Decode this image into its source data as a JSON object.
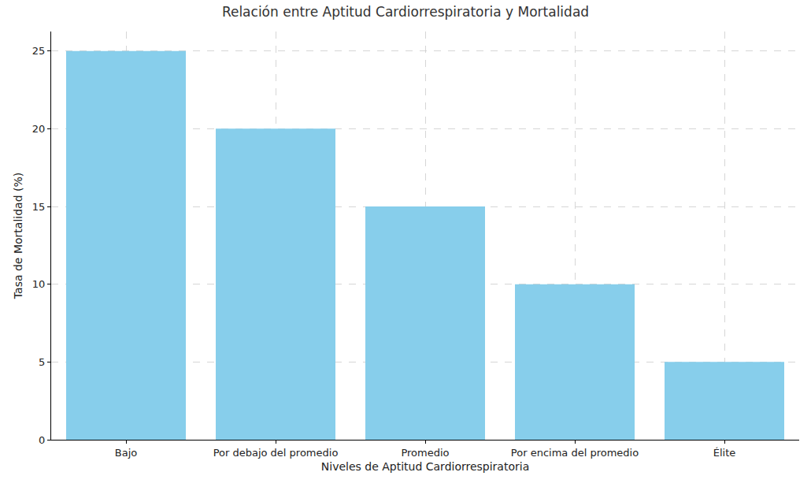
{
  "chart_data": {
    "type": "bar",
    "title": "Relación entre Aptitud Cardiorrespiratoria y Mortalidad",
    "x_label": "Niveles de Aptitud Cardiorrespiratoria",
    "y_label": "Tasa de Mortalidad (%)",
    "categories": [
      "Bajo",
      "Por debajo del promedio",
      "Promedio",
      "Por encima del promedio",
      "Élite"
    ],
    "values": [
      25,
      20,
      15,
      10,
      5
    ],
    "color": "#87ceeb",
    "ylim": [
      0,
      26.25
    ],
    "yticks": [
      0,
      5,
      10,
      15,
      20,
      25
    ],
    "grid": true
  }
}
